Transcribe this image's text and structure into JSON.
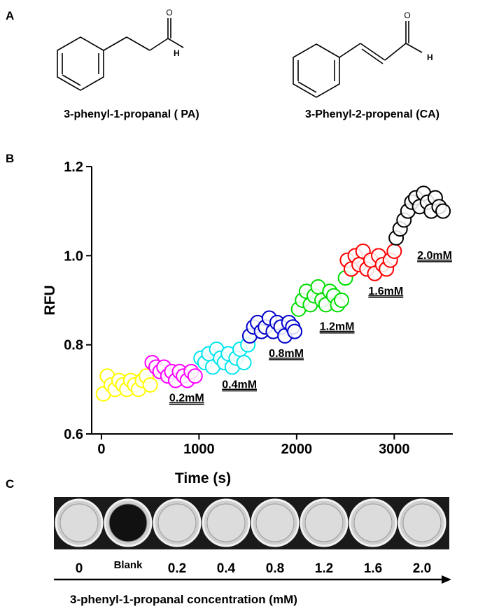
{
  "panel_labels": [
    "A",
    "B",
    "C"
  ],
  "panel_a": {
    "compounds": [
      {
        "name": "3-phenyl-1-propanal ( PA)",
        "o": "O",
        "h": "H"
      },
      {
        "name": "3-Phenyl-2-propenal (CA)",
        "o": "O",
        "h": "H"
      }
    ]
  },
  "chart_data": {
    "type": "scatter",
    "xlabel": "Time (s)",
    "ylabel": "RFU",
    "xlim": [
      -100,
      3600
    ],
    "ylim": [
      0.6,
      1.2
    ],
    "xticks": [
      0,
      1000,
      2000,
      3000
    ],
    "yticks": [
      0.6,
      0.8,
      {
        "value": 1,
        "label": "1.0"
      },
      1.2
    ],
    "series": [
      {
        "color": "#ffff00",
        "x": [
          20,
          60,
          100,
          140,
          180,
          220,
          260,
          300,
          340,
          380,
          420,
          460,
          500
        ],
        "values": [
          0.69,
          0.73,
          0.71,
          0.7,
          0.72,
          0.71,
          0.7,
          0.72,
          0.71,
          0.7,
          0.72,
          0.73,
          0.71
        ]
      },
      {
        "name": "0.2mM",
        "color": "#ff00ff",
        "x": [
          520,
          560,
          600,
          640,
          680,
          720,
          760,
          800,
          840,
          880,
          920,
          960
        ],
        "values": [
          0.76,
          0.75,
          0.74,
          0.75,
          0.73,
          0.74,
          0.72,
          0.74,
          0.73,
          0.72,
          0.74,
          0.73
        ]
      },
      {
        "name": "0.4mM",
        "color": "#00e5ee",
        "x": [
          1020,
          1060,
          1100,
          1140,
          1180,
          1220,
          1260,
          1300,
          1340,
          1380,
          1420,
          1460,
          1500
        ],
        "values": [
          0.77,
          0.76,
          0.78,
          0.75,
          0.79,
          0.77,
          0.76,
          0.78,
          0.75,
          0.77,
          0.79,
          0.76,
          0.8
        ]
      },
      {
        "name": "0.8mM",
        "color": "#0000cc",
        "x": [
          1520,
          1560,
          1600,
          1640,
          1680,
          1720,
          1760,
          1800,
          1840,
          1880,
          1920,
          1960,
          1980
        ],
        "values": [
          0.82,
          0.84,
          0.85,
          0.83,
          0.84,
          0.86,
          0.83,
          0.85,
          0.84,
          0.82,
          0.85,
          0.84,
          0.83
        ]
      },
      {
        "name": "1.2mM",
        "color": "#00dd00",
        "x": [
          2020,
          2060,
          2100,
          2140,
          2180,
          2220,
          2260,
          2300,
          2340,
          2380,
          2420,
          2460,
          2500
        ],
        "values": [
          0.88,
          0.9,
          0.92,
          0.89,
          0.91,
          0.93,
          0.9,
          0.89,
          0.92,
          0.91,
          0.89,
          0.9,
          0.95
        ]
      },
      {
        "name": "1.6mM",
        "color": "#ff0000",
        "x": [
          2520,
          2560,
          2600,
          2640,
          2680,
          2720,
          2760,
          2800,
          2840,
          2880,
          2920,
          2960,
          3000
        ],
        "values": [
          0.99,
          0.97,
          1.0,
          0.98,
          1.01,
          0.97,
          0.99,
          0.96,
          1.0,
          0.98,
          0.97,
          0.99,
          1.01
        ]
      },
      {
        "name": "2.0mM",
        "color": "#000000",
        "x": [
          3020,
          3060,
          3100,
          3140,
          3180,
          3220,
          3260,
          3300,
          3340,
          3380,
          3420,
          3460,
          3500
        ],
        "values": [
          1.04,
          1.06,
          1.08,
          1.1,
          1.12,
          1.13,
          1.11,
          1.14,
          1.12,
          1.1,
          1.13,
          1.11,
          1.1
        ]
      }
    ]
  },
  "panel_c": {
    "well_labels": [
      "0",
      "Blank",
      "0.2",
      "0.4",
      "0.8",
      "1.2",
      "1.6",
      "2.0"
    ],
    "axis_label": "3-phenyl-1-propanal concentration (mM)"
  }
}
